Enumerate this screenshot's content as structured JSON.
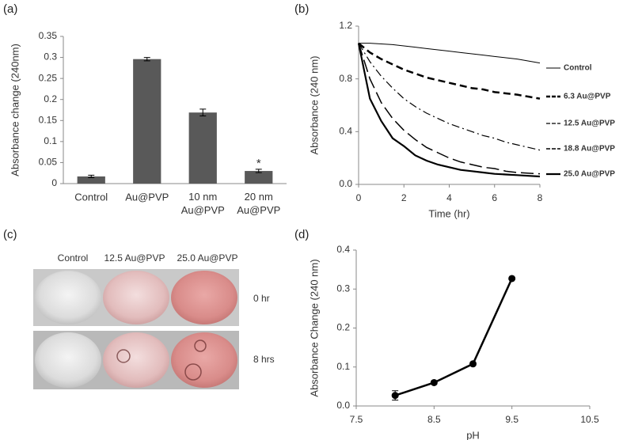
{
  "chart_data": [
    {
      "type": "bar",
      "panel": "(a)",
      "y_label": "Absorbance change (240nm)",
      "categories": [
        "Control",
        "Au@PVP",
        "10 nm Au@PVP",
        "20 nm Au@PVP"
      ],
      "values": [
        0.017,
        0.296,
        0.169,
        0.03
      ],
      "errors": [
        0.003,
        0.004,
        0.008,
        0.004
      ],
      "color": "#595959",
      "annotation": "*",
      "ylim": [
        0,
        0.35
      ],
      "yticks": [
        0,
        0.05,
        0.1,
        0.15,
        0.2,
        0.25,
        0.3,
        0.35
      ]
    },
    {
      "type": "line",
      "panel": "(b)",
      "x_label": "Time (hr)",
      "y_label": "Absorbance (240 nm)",
      "x": [
        0,
        0.5,
        1,
        1.5,
        2,
        2.5,
        3,
        3.5,
        4,
        4.5,
        5,
        5.5,
        6,
        6.5,
        7,
        7.5,
        8
      ],
      "series": [
        {
          "name": "Control",
          "color": "#000000",
          "dash": "solid",
          "line_width": 1,
          "values": [
            1.07,
            1.07,
            1.065,
            1.06,
            1.05,
            1.04,
            1.03,
            1.02,
            1.01,
            1.0,
            0.99,
            0.98,
            0.97,
            0.96,
            0.95,
            0.935,
            0.92
          ]
        },
        {
          "name": "6.3 Au@PVP",
          "color": "#000000",
          "dash": "dashed",
          "line_width": 2.5,
          "values": [
            1.07,
            1.0,
            0.95,
            0.91,
            0.87,
            0.84,
            0.81,
            0.79,
            0.77,
            0.75,
            0.73,
            0.72,
            0.7,
            0.69,
            0.68,
            0.665,
            0.65
          ]
        },
        {
          "name": "12.5 Au@PVP",
          "color": "#000000",
          "dash": "dashdot",
          "line_width": 1.2,
          "values": [
            1.07,
            0.93,
            0.82,
            0.73,
            0.65,
            0.59,
            0.54,
            0.5,
            0.46,
            0.43,
            0.4,
            0.37,
            0.35,
            0.32,
            0.3,
            0.28,
            0.26
          ]
        },
        {
          "name": "18.8 Au@PVP",
          "color": "#000000",
          "dash": "longdash",
          "line_width": 1.5,
          "values": [
            1.07,
            0.8,
            0.62,
            0.5,
            0.41,
            0.34,
            0.28,
            0.24,
            0.2,
            0.17,
            0.15,
            0.13,
            0.12,
            0.1,
            0.09,
            0.085,
            0.08
          ]
        },
        {
          "name": "25.0 Au@PVP",
          "color": "#000000",
          "dash": "solid",
          "line_width": 2.2,
          "values": [
            1.07,
            0.65,
            0.48,
            0.35,
            0.29,
            0.22,
            0.18,
            0.15,
            0.13,
            0.11,
            0.1,
            0.09,
            0.08,
            0.075,
            0.07,
            0.065,
            0.06
          ]
        }
      ],
      "legend": "right",
      "xlim": [
        0,
        8
      ],
      "xticks": [
        0,
        2,
        4,
        6,
        8
      ],
      "ylim": [
        0,
        1.2
      ],
      "yticks": [
        {
          "value": 0,
          "label": "0.0"
        },
        0.4,
        0.8,
        1.2
      ]
    },
    {
      "type": "line",
      "panel": "(d)",
      "x_label": "pH",
      "y_label": "Absorbance Change (240 nm)",
      "x": [
        8,
        8.5,
        9,
        9.5
      ],
      "series": [
        {
          "name": null,
          "color": "#000000",
          "dash": "solid",
          "line_width": 2.5,
          "markers": true,
          "values": [
            0.027,
            0.06,
            0.108,
            0.327
          ],
          "errors": [
            0.012,
            0.004,
            0.004,
            0.003
          ]
        }
      ],
      "xlim": [
        7.5,
        10.5
      ],
      "xticks": [
        7.5,
        8.5,
        9.5,
        10.5
      ],
      "ylim": [
        0,
        0.4
      ],
      "yticks": [
        {
          "value": 0,
          "label": "0.0"
        },
        0.1,
        0.2,
        0.3,
        0.4
      ]
    }
  ],
  "photo": {
    "panel": "(c)",
    "columns": [
      "Control",
      "12.5 Au@PVP",
      "25.0 Au@PVP"
    ],
    "rows": [
      "0 hr",
      "8 hrs"
    ]
  }
}
